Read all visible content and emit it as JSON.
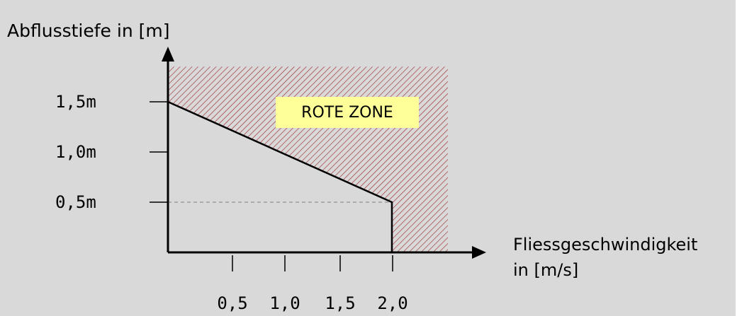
{
  "chart_data": {
    "type": "area",
    "ylabel": "Abflusstiefe in [m]",
    "xlabel_line1": "Fliessgeschwindigkeit",
    "xlabel_line2": "in [m/s]",
    "y_ticks": [
      {
        "value": 1.5,
        "label": "1,5m"
      },
      {
        "value": 1.0,
        "label": "1,0m"
      },
      {
        "value": 0.5,
        "label": "0,5m"
      }
    ],
    "x_ticks": [
      {
        "value": 0.5,
        "label": "0,5"
      },
      {
        "value": 1.0,
        "label": "1,0"
      },
      {
        "value": 1.5,
        "label": "1,5"
      },
      {
        "value": 2.0,
        "label": "2,0"
      }
    ],
    "boundary": [
      {
        "x": 0.0,
        "y": 1.5
      },
      {
        "x": 2.0,
        "y": 0.5
      },
      {
        "x": 2.0,
        "y": 0.0
      }
    ],
    "zone_label": "ROTE ZONE",
    "zone_extent": {
      "x_max": 2.5,
      "y_max": 1.85
    },
    "xlim": [
      0,
      2.8
    ],
    "ylim": [
      0,
      2.0
    ],
    "colors": {
      "background": "#d9d9d9",
      "hatch": "#a0282f",
      "zone_label_bg": "#ffff99",
      "zone_label_text": "#e8361b",
      "axis": "#000000",
      "dashed": "#808080"
    }
  }
}
